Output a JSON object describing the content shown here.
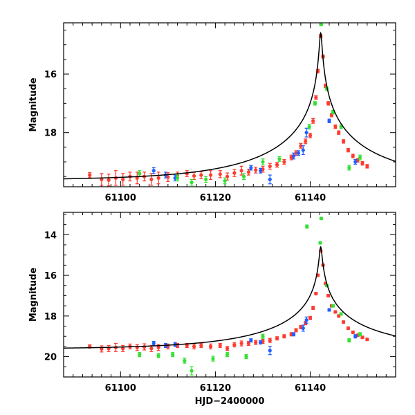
{
  "chart_data": [
    {
      "type": "scatter",
      "panel": "top",
      "title": "",
      "xlabel": "",
      "ylabel": "Magnitude",
      "xlim": [
        61088,
        61158
      ],
      "ylim": [
        19.85,
        14.25
      ],
      "x_ticks": [
        61100,
        61120,
        61140
      ],
      "x_tick_labels": [
        "61100",
        "61120",
        "61140"
      ],
      "y_ticks": [
        16,
        18
      ],
      "y_tick_labels": [
        "16",
        "18"
      ],
      "grid": false,
      "legend": "none",
      "colors": {
        "red": "#ff3b2f",
        "blue": "#1f5fff",
        "green": "#33e033",
        "model": "#000000"
      },
      "model_curve": {
        "name": "model",
        "baseline_mag": 19.63,
        "peak_mag": 14.6,
        "t0": 61142.2,
        "tE": 25,
        "u0": 0.01
      },
      "series": [
        {
          "name": "red",
          "color": "#ff3b2f",
          "points": [
            [
              61093.5,
              19.45,
              0.08
            ],
            [
              61096,
              19.6,
              0.2
            ],
            [
              61097.5,
              19.62,
              0.2
            ],
            [
              61099,
              19.55,
              0.25
            ],
            [
              61100.5,
              19.6,
              0.2
            ],
            [
              61102,
              19.5,
              0.15
            ],
            [
              61103.5,
              19.55,
              0.2
            ],
            [
              61105,
              19.5,
              0.15
            ],
            [
              61106.5,
              19.6,
              0.2
            ],
            [
              61108,
              19.55,
              0.2
            ],
            [
              61110,
              19.52,
              0.15
            ],
            [
              61112,
              19.45,
              0.1
            ],
            [
              61114,
              19.4,
              0.1
            ],
            [
              61115.5,
              19.48,
              0.12
            ],
            [
              61117,
              19.45,
              0.12
            ],
            [
              61119,
              19.45,
              0.15
            ],
            [
              61121,
              19.42,
              0.12
            ],
            [
              61122.5,
              19.5,
              0.12
            ],
            [
              61124,
              19.38,
              0.12
            ],
            [
              61125.5,
              19.3,
              0.15
            ],
            [
              61127,
              19.35,
              0.1
            ],
            [
              61128.5,
              19.28,
              0.1
            ],
            [
              61130,
              19.25,
              0.1
            ],
            [
              61131.5,
              19.15,
              0.1
            ],
            [
              61133,
              19.1,
              0.08
            ],
            [
              61134.5,
              19.0,
              0.08
            ],
            [
              61136,
              18.85,
              0.08
            ],
            [
              61137,
              18.7,
              0.08
            ],
            [
              61138,
              18.45,
              0.08
            ],
            [
              61139,
              18.3,
              0.08
            ],
            [
              61140,
              18.1,
              0.08
            ],
            [
              61140.6,
              17.6,
              0.08
            ],
            [
              61141.2,
              16.8,
              0.06
            ],
            [
              61141.6,
              15.9,
              0.06
            ],
            [
              61142.2,
              14.7,
              0.05
            ],
            [
              61142.7,
              15.4,
              0.05
            ],
            [
              61143.2,
              16.4,
              0.06
            ],
            [
              61143.8,
              17.0,
              0.06
            ],
            [
              61144.5,
              17.4,
              0.06
            ],
            [
              61145.3,
              17.8,
              0.06
            ],
            [
              61146,
              18.0,
              0.06
            ],
            [
              61147,
              18.3,
              0.06
            ],
            [
              61148,
              18.6,
              0.06
            ],
            [
              61149,
              18.8,
              0.06
            ],
            [
              61150,
              18.95,
              0.06
            ],
            [
              61151,
              19.05,
              0.06
            ],
            [
              61152,
              19.15,
              0.06
            ]
          ]
        },
        {
          "name": "blue",
          "color": "#1f5fff",
          "points": [
            [
              61107,
              19.3,
              0.1
            ],
            [
              61109.5,
              19.45,
              0.1
            ],
            [
              61111.5,
              19.55,
              0.1
            ],
            [
              61127.5,
              19.2,
              0.08
            ],
            [
              61129.5,
              19.3,
              0.08
            ],
            [
              61131.5,
              19.6,
              0.15
            ],
            [
              61136.5,
              18.8,
              0.1
            ],
            [
              61137.5,
              18.7,
              0.08
            ],
            [
              61138.5,
              18.6,
              0.15
            ],
            [
              61139.2,
              18.0,
              0.15
            ],
            [
              61144,
              17.6,
              0.06
            ],
            [
              61149.5,
              19.0,
              0.08
            ]
          ]
        },
        {
          "name": "green",
          "color": "#33e033",
          "points": [
            [
              61104,
              19.4,
              0.1
            ],
            [
              61112,
              19.55,
              0.1
            ],
            [
              61115,
              19.7,
              0.1
            ],
            [
              61118,
              19.6,
              0.1
            ],
            [
              61122,
              19.65,
              0.1
            ],
            [
              61126,
              19.5,
              0.1
            ],
            [
              61130,
              19.0,
              0.1
            ],
            [
              61133.5,
              18.9,
              0.08
            ],
            [
              61139.8,
              17.8,
              0.08
            ],
            [
              61141,
              17.0,
              0.06
            ],
            [
              61142.3,
              14.3,
              0.05
            ],
            [
              61143.5,
              16.5,
              0.06
            ],
            [
              61144.8,
              17.3,
              0.06
            ],
            [
              61146.5,
              17.8,
              0.06
            ],
            [
              61148.2,
              19.2,
              0.08
            ],
            [
              61150.5,
              18.85,
              0.08
            ]
          ]
        }
      ]
    },
    {
      "type": "scatter",
      "panel": "bottom",
      "title": "",
      "xlabel": "HJD−2400000",
      "ylabel": "Magnitude",
      "xlim": [
        61088,
        61158
      ],
      "ylim": [
        21.0,
        12.9
      ],
      "x_ticks": [
        61100,
        61120,
        61140
      ],
      "x_tick_labels": [
        "61100",
        "61120",
        "61140"
      ],
      "y_ticks": [
        14,
        16,
        18,
        20
      ],
      "y_tick_labels": [
        "14",
        "16",
        "18",
        "20"
      ],
      "grid": false,
      "legend": "none",
      "colors": {
        "red": "#ff3b2f",
        "blue": "#1f5fff",
        "green": "#33e033",
        "model": "#000000"
      },
      "model_curve": {
        "name": "model",
        "baseline_mag": 19.63,
        "peak_mag": 14.6,
        "t0": 61142.2,
        "tE": 25,
        "u0": 0.01
      },
      "series": [
        {
          "name": "red",
          "color": "#ff3b2f",
          "points": [
            [
              61093.5,
              19.5,
              0.08
            ],
            [
              61096,
              19.62,
              0.15
            ],
            [
              61097.5,
              19.6,
              0.15
            ],
            [
              61099,
              19.55,
              0.2
            ],
            [
              61100.5,
              19.6,
              0.15
            ],
            [
              61102,
              19.5,
              0.12
            ],
            [
              61103.5,
              19.55,
              0.15
            ],
            [
              61105,
              19.52,
              0.15
            ],
            [
              61106.5,
              19.6,
              0.15
            ],
            [
              61108,
              19.55,
              0.15
            ],
            [
              61110,
              19.5,
              0.12
            ],
            [
              61112,
              19.45,
              0.1
            ],
            [
              61114,
              19.45,
              0.1
            ],
            [
              61115.5,
              19.5,
              0.12
            ],
            [
              61117,
              19.45,
              0.1
            ],
            [
              61119,
              19.5,
              0.12
            ],
            [
              61121,
              19.45,
              0.1
            ],
            [
              61122.5,
              19.6,
              0.1
            ],
            [
              61124,
              19.42,
              0.1
            ],
            [
              61125.5,
              19.35,
              0.12
            ],
            [
              61127,
              19.35,
              0.1
            ],
            [
              61128.5,
              19.3,
              0.1
            ],
            [
              61130,
              19.25,
              0.1
            ],
            [
              61131.5,
              19.2,
              0.1
            ],
            [
              61133,
              19.1,
              0.08
            ],
            [
              61134.5,
              19.0,
              0.08
            ],
            [
              61136,
              18.9,
              0.08
            ],
            [
              61137,
              18.7,
              0.08
            ],
            [
              61138,
              18.55,
              0.08
            ],
            [
              61139,
              18.35,
              0.08
            ],
            [
              61140,
              18.1,
              0.08
            ],
            [
              61140.6,
              17.6,
              0.08
            ],
            [
              61141.2,
              16.9,
              0.06
            ],
            [
              61141.6,
              16.0,
              0.06
            ],
            [
              61142.2,
              14.8,
              0.05
            ],
            [
              61142.7,
              15.5,
              0.05
            ],
            [
              61143.2,
              16.4,
              0.06
            ],
            [
              61143.8,
              17.0,
              0.06
            ],
            [
              61144.5,
              17.5,
              0.06
            ],
            [
              61145.3,
              17.8,
              0.06
            ],
            [
              61146,
              18.0,
              0.06
            ],
            [
              61147,
              18.3,
              0.06
            ],
            [
              61148,
              18.6,
              0.06
            ],
            [
              61149,
              18.8,
              0.06
            ],
            [
              61150,
              18.95,
              0.06
            ],
            [
              61151,
              19.05,
              0.06
            ],
            [
              61152,
              19.15,
              0.06
            ]
          ]
        },
        {
          "name": "blue",
          "color": "#1f5fff",
          "points": [
            [
              61107,
              19.35,
              0.1
            ],
            [
              61109.5,
              19.45,
              0.1
            ],
            [
              61111.5,
              19.4,
              0.1
            ],
            [
              61127.5,
              19.2,
              0.08
            ],
            [
              61129.5,
              19.3,
              0.08
            ],
            [
              61131.5,
              19.7,
              0.2
            ],
            [
              61136.5,
              18.9,
              0.08
            ],
            [
              61138.5,
              18.6,
              0.15
            ],
            [
              61139.2,
              18.2,
              0.15
            ],
            [
              61144,
              17.7,
              0.06
            ],
            [
              61149.5,
              19.0,
              0.08
            ]
          ]
        },
        {
          "name": "green",
          "color": "#33e033",
          "points": [
            [
              61104,
              19.9,
              0.1
            ],
            [
              61108,
              19.95,
              0.1
            ],
            [
              61111,
              19.9,
              0.1
            ],
            [
              61113.5,
              20.2,
              0.12
            ],
            [
              61115,
              20.7,
              0.2
            ],
            [
              61119.5,
              20.1,
              0.12
            ],
            [
              61122.5,
              19.9,
              0.1
            ],
            [
              61126.5,
              20.0,
              0.1
            ],
            [
              61130,
              19.0,
              0.1
            ],
            [
              61139.3,
              13.6,
              0.08
            ],
            [
              61142.3,
              13.2,
              0.05
            ],
            [
              61142.1,
              14.4,
              0.06
            ],
            [
              61143.5,
              16.5,
              0.06
            ],
            [
              61144.8,
              17.5,
              0.06
            ],
            [
              61146.5,
              17.9,
              0.06
            ],
            [
              61148.2,
              19.2,
              0.08
            ],
            [
              61150.5,
              18.9,
              0.08
            ]
          ]
        }
      ]
    }
  ]
}
